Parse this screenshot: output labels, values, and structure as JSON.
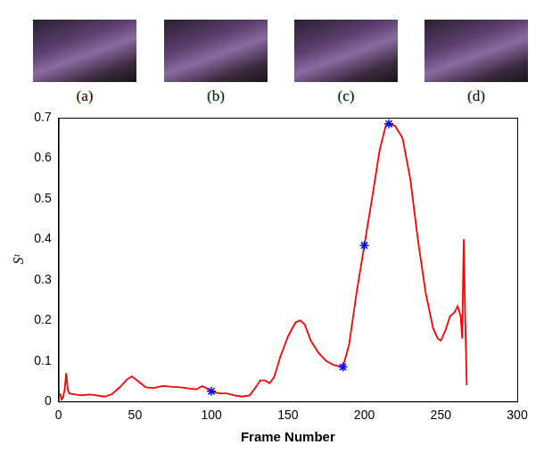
{
  "chart_data": {
    "type": "line",
    "subfigure_labels": [
      "(a)",
      "(b)",
      "(c)",
      "(d)"
    ],
    "x_label": "Frame Number",
    "y_label": "Sᵗ",
    "xlim": [
      0,
      300
    ],
    "xticks": [
      0,
      50,
      100,
      150,
      200,
      250,
      300
    ],
    "ylim": [
      0,
      0.7
    ],
    "yticks": [
      0,
      0.1,
      0.2,
      0.3,
      0.4,
      0.5,
      0.6,
      0.7
    ],
    "grid": false,
    "series": [
      {
        "type": "line",
        "color": "#ff0000",
        "marker": "none",
        "line_style": "solid",
        "x": [
          1,
          2,
          3,
          4,
          5,
          6,
          7,
          10,
          15,
          20,
          25,
          30,
          35,
          40,
          45,
          48,
          52,
          57,
          62,
          68,
          75,
          80,
          85,
          90,
          94,
          97,
          100,
          105,
          110,
          115,
          120,
          125,
          128,
          132,
          135,
          138,
          141,
          145,
          150,
          155,
          158,
          161,
          165,
          170,
          175,
          180,
          186,
          190,
          195,
          200,
          205,
          210,
          214,
          216,
          220,
          225,
          230,
          235,
          240,
          245,
          248,
          250,
          253,
          256,
          259,
          261,
          263,
          264,
          265,
          266,
          267
        ],
        "values": [
          0.02,
          0.005,
          0.01,
          0.03,
          0.07,
          0.03,
          0.02,
          0.018,
          0.015,
          0.017,
          0.015,
          0.012,
          0.018,
          0.035,
          0.055,
          0.062,
          0.05,
          0.035,
          0.033,
          0.038,
          0.036,
          0.035,
          0.032,
          0.03,
          0.038,
          0.032,
          0.025,
          0.02,
          0.02,
          0.015,
          0.012,
          0.015,
          0.03,
          0.052,
          0.052,
          0.045,
          0.06,
          0.11,
          0.16,
          0.195,
          0.2,
          0.19,
          0.15,
          0.12,
          0.1,
          0.09,
          0.085,
          0.14,
          0.27,
          0.385,
          0.5,
          0.62,
          0.68,
          0.685,
          0.68,
          0.65,
          0.55,
          0.4,
          0.27,
          0.18,
          0.155,
          0.15,
          0.175,
          0.21,
          0.22,
          0.235,
          0.21,
          0.155,
          0.4,
          0.2,
          0.04
        ]
      },
      {
        "type": "scatter",
        "color": "#0000ff",
        "marker": "star",
        "line_style": "none",
        "x": [
          100,
          186,
          200,
          216
        ],
        "values": [
          0.025,
          0.085,
          0.385,
          0.685
        ]
      }
    ]
  }
}
